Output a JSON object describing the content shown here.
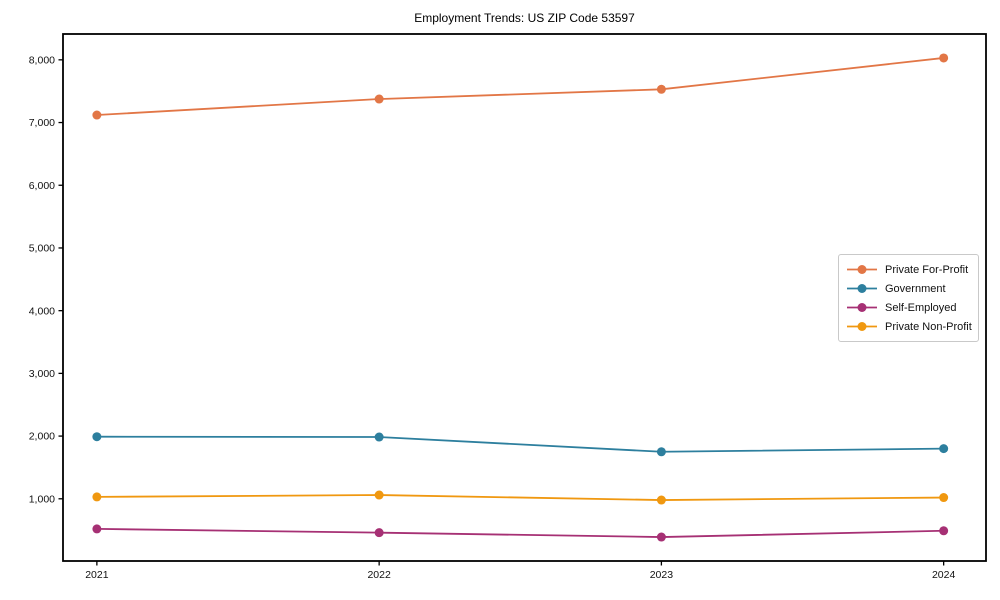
{
  "chart_data": {
    "type": "line",
    "title": "Employment Trends: US ZIP Code 53597",
    "categories": [
      "2021",
      "2022",
      "2023",
      "2024"
    ],
    "series": [
      {
        "name": "Private For-Profit",
        "color": "#e27646",
        "values": [
          7120,
          7375,
          7530,
          8030
        ]
      },
      {
        "name": "Government",
        "color": "#2d7f9e",
        "values": [
          1990,
          1985,
          1750,
          1800
        ]
      },
      {
        "name": "Self-Employed",
        "color": "#a63074",
        "values": [
          520,
          460,
          390,
          490
        ]
      },
      {
        "name": "Private Non-Profit",
        "color": "#f09810",
        "values": [
          1030,
          1060,
          980,
          1020
        ]
      }
    ],
    "yticks": [
      1000,
      2000,
      3000,
      4000,
      5000,
      6000,
      7000,
      8000
    ],
    "ytick_labels": [
      "1,000",
      "2,000",
      "3,000",
      "4,000",
      "5,000",
      "6,000",
      "7,000",
      "8,000"
    ],
    "xlabel": "",
    "ylabel": "",
    "ylim": [
      8,
      8412
    ],
    "xlim": [
      2020.88,
      2024.15
    ],
    "grid": false,
    "legend_position": "center-right",
    "frame_color": "#000000"
  }
}
